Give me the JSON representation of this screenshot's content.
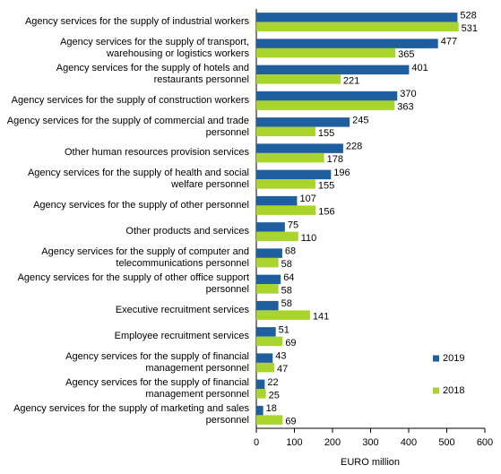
{
  "chart_data": {
    "type": "hbar",
    "categories": [
      "Agency services for the supply of industrial workers",
      "Agency services for the supply of transport, warehousing or logistics workers",
      "Agency services for the supply of hotels and restaurants personnel",
      "Agency services for the supply of construction workers",
      "Agency services for the supply of commercial and trade personnel",
      "Other human resources provision services",
      "Agency services for the supply of health and social welfare personnel",
      "Agency services for the supply of other personnel",
      "Other products and services",
      "Agency services for the supply of computer and telecommunications personnel",
      "Agency services for the supply of other office support personnel",
      "Executive recruitment services",
      "Employee recruitment services",
      "Agency services for the supply of financial management personnel",
      "Agency services for the supply of financial management personnel",
      "Agency services for the supply of marketing and sales personnel"
    ],
    "series": [
      {
        "name": "2019",
        "color": "#1f5fa0",
        "values": [
          528,
          477,
          401,
          370,
          245,
          228,
          196,
          107,
          75,
          68,
          64,
          58,
          51,
          43,
          22,
          18
        ]
      },
      {
        "name": "2018",
        "color": "#a8d42c",
        "values": [
          531,
          365,
          221,
          363,
          155,
          178,
          155,
          156,
          110,
          58,
          58,
          141,
          69,
          47,
          25,
          69
        ]
      }
    ],
    "x_label": "EURO million",
    "xlim": [
      0,
      600
    ],
    "xticks": [
      0,
      100,
      200,
      300,
      400,
      500,
      600
    ]
  }
}
